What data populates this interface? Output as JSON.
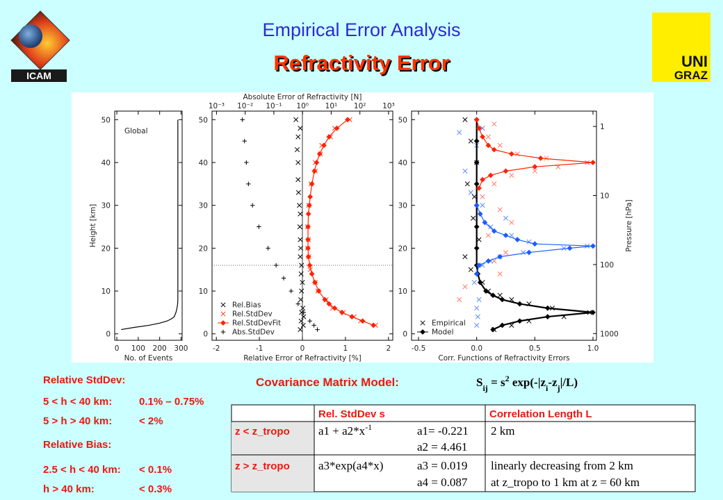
{
  "header": {
    "title": "Empirical Error Analysis",
    "subtitle": "Refractivity Error",
    "logo_left": "ICAM",
    "logo_right": [
      "UNI",
      "GRAZ"
    ]
  },
  "chart_data": [
    {
      "type": "line",
      "annotation": "Global",
      "xlabel": "No. of Events",
      "ylabel": "Height [km]",
      "xlim": [
        -10,
        305
      ],
      "xticks": [
        0,
        100,
        200,
        300
      ],
      "ylim": [
        -1.5,
        52
      ],
      "yticks": [
        0,
        10,
        20,
        30,
        40,
        50
      ],
      "series": [
        {
          "color": "#000000",
          "line": true,
          "x": [
            20,
            80,
            150,
            200,
            235,
            255,
            268,
            276,
            281,
            284,
            285,
            285,
            285
          ],
          "y": [
            1,
            1.5,
            2,
            2.5,
            3,
            3.5,
            4,
            5,
            6,
            7,
            8,
            30,
            50
          ]
        }
      ]
    },
    {
      "type": "scatter",
      "xlabel": "Relative Error of Refractivity [%]",
      "x2label": "Absolute Error of Refractivity [N]",
      "xlim": [
        -2.1,
        2.1
      ],
      "xticks": [
        -2,
        -1,
        0,
        1,
        2
      ],
      "ylim": [
        -1.5,
        52
      ],
      "yticks": [
        0,
        10,
        20,
        30,
        40,
        50
      ],
      "x2scale": "log",
      "x2lim": [
        0.0007,
        1400
      ],
      "x2ticks": [
        {
          "value": 0.001,
          "label": "10⁻³"
        },
        {
          "value": 0.01,
          "label": "10⁻²"
        },
        {
          "value": 0.1,
          "label": "10⁻¹"
        },
        {
          "value": 1,
          "label": "10⁰"
        },
        {
          "value": 10,
          "label": "10¹"
        },
        {
          "value": 100,
          "label": "10²"
        },
        {
          "value": 1000,
          "label": "10³"
        }
      ],
      "hlines": [
        16
      ],
      "zeroline": true,
      "legend": "lower left",
      "series": [
        {
          "name": "Rel.Bias",
          "color": "#000000",
          "marker": "x",
          "x": [
            -0.05,
            0.02,
            -0.03,
            0.03,
            -0.02,
            0.01,
            -0.04,
            -0.02,
            0,
            -0.03,
            -0.02,
            -0.05,
            -0.04,
            -0.05,
            -0.06,
            -0.05,
            -0.07,
            -0.09,
            -0.1,
            -0.1,
            -0.12,
            -0.1,
            -0.05,
            -0.15
          ],
          "y": [
            1,
            2,
            3,
            4,
            5,
            6,
            8,
            10,
            12,
            14,
            16,
            18,
            20,
            22,
            25,
            28,
            30,
            33,
            36,
            40,
            43,
            46,
            48,
            50
          ]
        },
        {
          "name": "Rel.StdDev",
          "color": "#ff3a1a",
          "marker": "x",
          "x": [
            1.7,
            1.35,
            1.2,
            0.95,
            0.7,
            0.55,
            0.36,
            0.3,
            0.18,
            0.15,
            0.12,
            0.14,
            0.12,
            0.15,
            0.2,
            0.3,
            0.3,
            0.42,
            0.45,
            0.65,
            0.75,
            1.1
          ],
          "y": [
            2,
            3,
            4,
            5,
            6,
            8,
            10,
            12,
            15,
            18,
            20,
            22,
            25,
            30,
            35,
            38,
            40,
            42,
            44,
            46,
            48,
            50
          ]
        },
        {
          "name": "Rel.StdDevFit",
          "color": "#ff2200",
          "marker": "diamond",
          "line": true,
          "x": [
            1.65,
            1.4,
            1.15,
            0.92,
            0.75,
            0.62,
            0.52,
            0.38,
            0.29,
            0.22,
            0.17,
            0.14,
            0.13,
            0.13,
            0.13,
            0.14,
            0.16,
            0.18,
            0.22,
            0.28,
            0.33,
            0.4,
            0.5,
            0.62,
            0.8,
            1.05
          ],
          "y": [
            2,
            3,
            4,
            5,
            6,
            7,
            8,
            10,
            12,
            14,
            16,
            18,
            20,
            22,
            25,
            28,
            30,
            32,
            35,
            38,
            40,
            42,
            44,
            46,
            48,
            50
          ]
        },
        {
          "name": "Abs.StdDev",
          "color": "#000000",
          "marker": "plus",
          "axis": "x2",
          "x": [
            3.3,
            2.5,
            1.8,
            1.1,
            0.7,
            0.4,
            0.22,
            0.12,
            0.063,
            0.03,
            0.018,
            0.013,
            0.011,
            0.0095,
            0.008
          ],
          "y": [
            1,
            2,
            3,
            5,
            7,
            10,
            13,
            16,
            20,
            25,
            30,
            35,
            40,
            45,
            50
          ]
        }
      ]
    },
    {
      "type": "scatter",
      "xlabel": "Corr. Functions of Refractivity Errors",
      "y2label": "Pressure [hPa]",
      "xlim": [
        -0.56,
        1.03
      ],
      "xticks": [
        -0.5,
        {
          "value": 0,
          "label": "0.0"
        },
        0.5,
        {
          "value": 1,
          "label": "1.0"
        }
      ],
      "ylim": [
        -1.5,
        52
      ],
      "yticks": [
        0,
        10,
        20,
        30,
        40,
        50
      ],
      "y2scale": "log",
      "y2lim": [
        1250,
        0.6
      ],
      "y2ticks": [
        1,
        10,
        100,
        1000
      ],
      "legend": "lower left",
      "series": [
        {
          "name": "Empirical",
          "color": "#000000",
          "marker": "x",
          "x": [
            0.15,
            0.3,
            0.45,
            0.75,
            0.97,
            0.65,
            0.45,
            0.3,
            0.2,
            0.1,
            0.05,
            -0.05,
            -0.1,
            0.02,
            -0.03,
            -0.02,
            -0.08,
            0,
            -0.05,
            -0.1
          ],
          "y": [
            1,
            2,
            3,
            4,
            5,
            6,
            7,
            8,
            9,
            10,
            12,
            15,
            18,
            22,
            27,
            32,
            35,
            40,
            45,
            50
          ]
        },
        {
          "name": "Empirical",
          "color": "#ff7a66",
          "marker": "x",
          "x": [
            -0.15,
            -0.1,
            0.2,
            0.15,
            0.25,
            0.1,
            0.3,
            0.2,
            0.05,
            0.15,
            0.3,
            0.5,
            0.7,
            0.95,
            0.6,
            0.35,
            0.2,
            0.1,
            0.05,
            0.15
          ],
          "y": [
            8,
            11,
            14,
            17,
            19,
            23,
            26,
            29,
            32,
            35,
            37,
            38,
            39,
            40,
            41,
            42,
            44,
            46,
            48,
            49
          ]
        },
        {
          "name": "Empirical",
          "color": "#5a8cff",
          "marker": "x",
          "x": [
            0,
            0.01,
            0,
            0.02,
            -0.02,
            0.05,
            0.12,
            0.2,
            0.4,
            0.75,
            0.95,
            0.45,
            0.3,
            0.12,
            0.25,
            0.05,
            -0.05,
            -0.1,
            0,
            -0.15,
            0.05
          ],
          "y": [
            2,
            4,
            6,
            8,
            12,
            16,
            17,
            18,
            19,
            20,
            20.5,
            21.5,
            23,
            25,
            27,
            30,
            33,
            38,
            44,
            47,
            48
          ]
        },
        {
          "name": "Model",
          "color": "#000000",
          "marker": "diamond",
          "line": true,
          "x": [
            0.14,
            0.22,
            0.37,
            0.61,
            1.0,
            0.61,
            0.37,
            0.22,
            0.14,
            0.08,
            0.03,
            0.01,
            0,
            0,
            0,
            0,
            0,
            0,
            0,
            0
          ],
          "y": [
            1,
            2,
            3,
            4,
            5,
            6,
            7,
            8,
            9,
            10,
            12,
            14,
            16,
            20,
            25,
            30,
            35,
            40,
            45,
            50
          ]
        },
        {
          "name": "Model",
          "color": "#ff2200",
          "marker": "diamond",
          "line": true,
          "x": [
            0.02,
            0.05,
            0.12,
            0.25,
            0.5,
            1.0,
            0.55,
            0.3,
            0.15,
            0.1,
            0.05,
            0.02,
            0
          ],
          "y": [
            34,
            36,
            37,
            38,
            39,
            40,
            41,
            42,
            43,
            44,
            46,
            48,
            50
          ]
        },
        {
          "name": "Model",
          "color": "#1a5cff",
          "marker": "diamond",
          "line": true,
          "x": [
            0,
            0.02,
            0.1,
            0.2,
            0.45,
            0.8,
            1.0,
            0.5,
            0.35,
            0.25,
            0.15,
            0.07,
            0.03,
            0
          ],
          "y": [
            14,
            16,
            17,
            18,
            19,
            20,
            20.5,
            21,
            22,
            23,
            24,
            26,
            28,
            30
          ]
        }
      ]
    }
  ],
  "notes": {
    "stddev_title": "Relative StdDev:",
    "stddev": [
      [
        "5 < h < 40 km:",
        "0.1% – 0.75%"
      ],
      [
        "5 > h > 40 km:",
        "< 2%"
      ]
    ],
    "bias_title": "Relative Bias:",
    "bias": [
      [
        "2.5 < h < 40 km:",
        "< 0.1%"
      ],
      [
        "h > 40 km:",
        "< 0.3%"
      ]
    ]
  },
  "model": {
    "label": "Covariance Matrix Model:",
    "formula": [
      "S",
      "ij",
      " = s",
      "2",
      " exp(-|z",
      "i",
      "-z",
      "j",
      "|/L)"
    ]
  },
  "table": {
    "header": [
      "Rel. StdDev s",
      "Correlation Length L"
    ],
    "rows": [
      {
        "label": "z < z_tropo",
        "formula": "a1 + a2*x",
        "formula_sup": "-1",
        "params": [
          "a1= -0.221",
          "a2 = 4.461"
        ],
        "length": [
          "2 km"
        ]
      },
      {
        "label": "z > z_tropo",
        "formula": "a3*exp(a4*x)",
        "params": [
          "a3 = 0.019",
          "a4 = 0.087"
        ],
        "length": [
          "linearly decreasing from 2 km",
          "at z_tropo to 1 km at z = 60 km"
        ]
      }
    ]
  }
}
